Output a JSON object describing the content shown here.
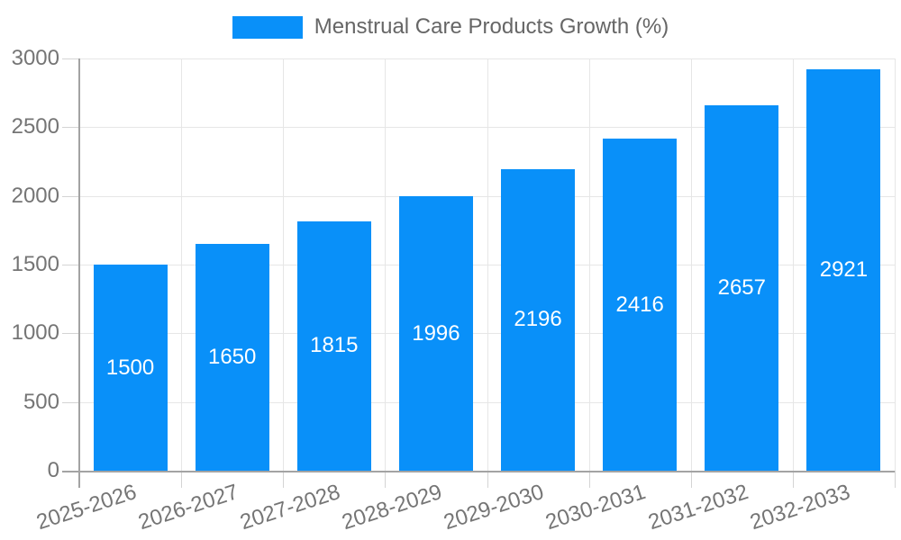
{
  "chart_data": {
    "type": "bar",
    "title": "Menstrual Care Products Growth (%)",
    "legend": [
      "Menstrual Care Products Growth (%)"
    ],
    "legend_position": "top",
    "categories": [
      "2025-2026",
      "2026-2027",
      "2027-2028",
      "2028-2029",
      "2029-2030",
      "2030-2031",
      "2031-2032",
      "2032-2033"
    ],
    "values": [
      1500,
      1650,
      1815,
      1996,
      2196,
      2416,
      2657,
      2921
    ],
    "bar_value_labels": [
      "1500",
      "1650",
      "1815",
      "1996",
      "2196",
      "2416",
      "2657",
      "2921"
    ],
    "xlabel": "",
    "ylabel": "",
    "ylim": [
      0,
      3000
    ],
    "yticks": [
      0,
      500,
      1000,
      1500,
      2000,
      2500,
      3000
    ],
    "grid": true
  },
  "colors": {
    "bar": "#0990f9",
    "bar_label": "#ffffff",
    "grid": "#e6e6e6",
    "tick": "#d4d4d4",
    "axis": "#a3a3a3",
    "tick_label": "#757575",
    "legend_text": "#666666",
    "background": "#ffffff"
  }
}
